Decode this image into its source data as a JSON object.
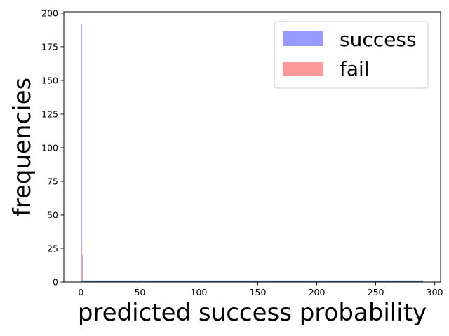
{
  "chart_data": {
    "type": "histogram",
    "xlabel": "predicted success probability",
    "ylabel": "frequencies",
    "xlim": [
      -14.5,
      305
    ],
    "ylim": [
      0,
      201
    ],
    "xticks": [
      0,
      50,
      100,
      150,
      200,
      250,
      300
    ],
    "yticks": [
      0,
      25,
      50,
      75,
      100,
      125,
      150,
      175,
      200
    ],
    "grid": false,
    "legend_position": "top-right",
    "series": [
      {
        "name": "success",
        "color": "#9999ff",
        "bins": [
          {
            "x0": 0.4,
            "x1": 1.0,
            "value": 192
          },
          {
            "x0": 1.0,
            "x1": 1.6,
            "value": 20
          }
        ]
      },
      {
        "name": "fail",
        "color": "#ff9999",
        "bins": [
          {
            "x0": 0.4,
            "x1": 1.0,
            "value": 27
          },
          {
            "x0": 1.0,
            "x1": 1.6,
            "value": 8
          }
        ]
      }
    ],
    "baseline_line": {
      "color": "#1f77b4",
      "x_range": [
        0,
        290
      ],
      "value": 0.7
    }
  }
}
